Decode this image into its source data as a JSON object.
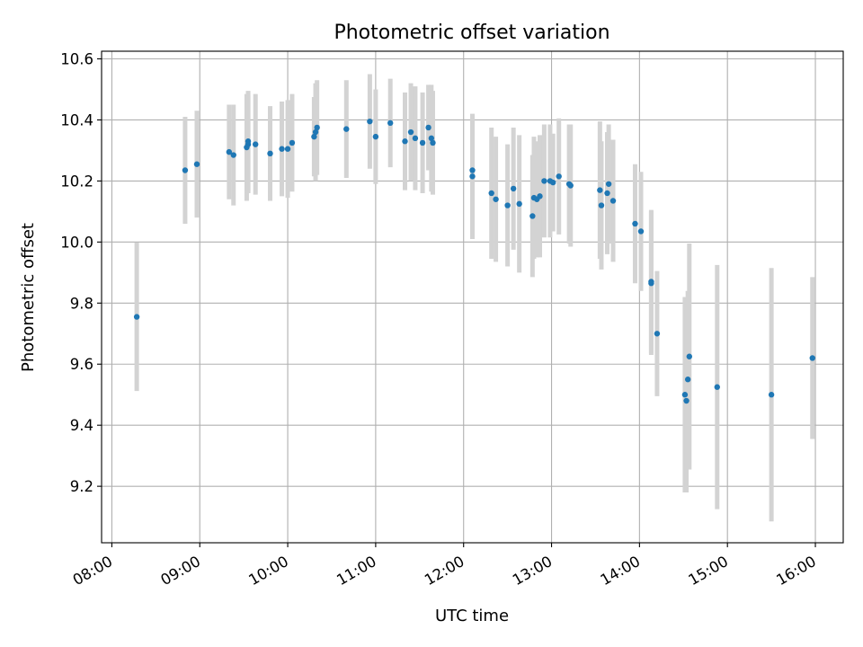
{
  "chart_data": {
    "type": "scatter",
    "title": "Photometric offset variation",
    "xlabel": "UTC time",
    "ylabel": "Photometric offset",
    "xlim": [
      "07:53",
      "16:19"
    ],
    "ylim": [
      9.015,
      10.625
    ],
    "x_ticks": [
      "08:00",
      "09:00",
      "10:00",
      "11:00",
      "12:00",
      "13:00",
      "14:00",
      "15:00",
      "16:00"
    ],
    "y_ticks": [
      "9.2",
      "9.4",
      "9.6",
      "9.8",
      "10.0",
      "10.2",
      "10.4",
      "10.6"
    ],
    "grid": true,
    "colors": {
      "point": "#1f77b4",
      "errorbar": "#d3d3d3",
      "grid": "#b0b0b0"
    },
    "series": [
      {
        "x": [
          "08:17",
          "08:50",
          "08:58",
          "09:20",
          "09:23",
          "09:32",
          "09:33",
          "09:33",
          "09:38",
          "09:48",
          "09:56",
          "10:00",
          "10:03",
          "10:18",
          "10:19",
          "10:20",
          "10:40",
          "10:56",
          "11:00",
          "11:10",
          "11:20",
          "11:24",
          "11:27",
          "11:32",
          "11:36",
          "11:38",
          "11:39",
          "12:06",
          "12:06",
          "12:19",
          "12:22",
          "12:30",
          "12:34",
          "12:38",
          "12:47",
          "12:48",
          "12:50",
          "12:52",
          "12:55",
          "12:59",
          "13:01",
          "13:05",
          "13:12",
          "13:13",
          "13:33",
          "13:34",
          "13:38",
          "13:39",
          "13:42",
          "13:57",
          "14:01",
          "14:08",
          "14:08",
          "14:12",
          "14:31",
          "14:32",
          "14:33",
          "14:34",
          "14:53",
          "15:30",
          "15:58"
        ],
        "y": [
          9.755,
          10.235,
          10.255,
          10.295,
          10.285,
          10.31,
          10.32,
          10.33,
          10.32,
          10.29,
          10.305,
          10.305,
          10.325,
          10.345,
          10.36,
          10.375,
          10.37,
          10.395,
          10.345,
          10.39,
          10.33,
          10.36,
          10.34,
          10.325,
          10.375,
          10.34,
          10.325,
          10.215,
          10.235,
          10.16,
          10.14,
          10.12,
          10.175,
          10.125,
          10.085,
          10.145,
          10.14,
          10.15,
          10.2,
          10.2,
          10.195,
          10.215,
          10.19,
          10.185,
          10.17,
          10.12,
          10.16,
          10.19,
          10.135,
          10.06,
          10.035,
          9.865,
          9.87,
          9.7,
          9.5,
          9.48,
          9.55,
          9.625,
          9.525,
          9.5,
          9.62
        ],
        "yerr": [
          0.243,
          0.175,
          0.175,
          0.155,
          0.165,
          0.175,
          0.16,
          0.165,
          0.165,
          0.155,
          0.155,
          0.16,
          0.16,
          0.13,
          0.16,
          0.155,
          0.16,
          0.155,
          0.155,
          0.145,
          0.16,
          0.16,
          0.17,
          0.165,
          0.14,
          0.175,
          0.17,
          0.205,
          0.18,
          0.215,
          0.205,
          0.2,
          0.2,
          0.225,
          0.2,
          0.2,
          0.19,
          0.2,
          0.185,
          0.185,
          0.16,
          0.19,
          0.195,
          0.2,
          0.225,
          0.21,
          0.2,
          0.195,
          0.2,
          0.195,
          0.195,
          0.235,
          0.235,
          0.205,
          0.32,
          0.3,
          0.29,
          0.37,
          0.4,
          0.415,
          0.265
        ]
      }
    ]
  }
}
